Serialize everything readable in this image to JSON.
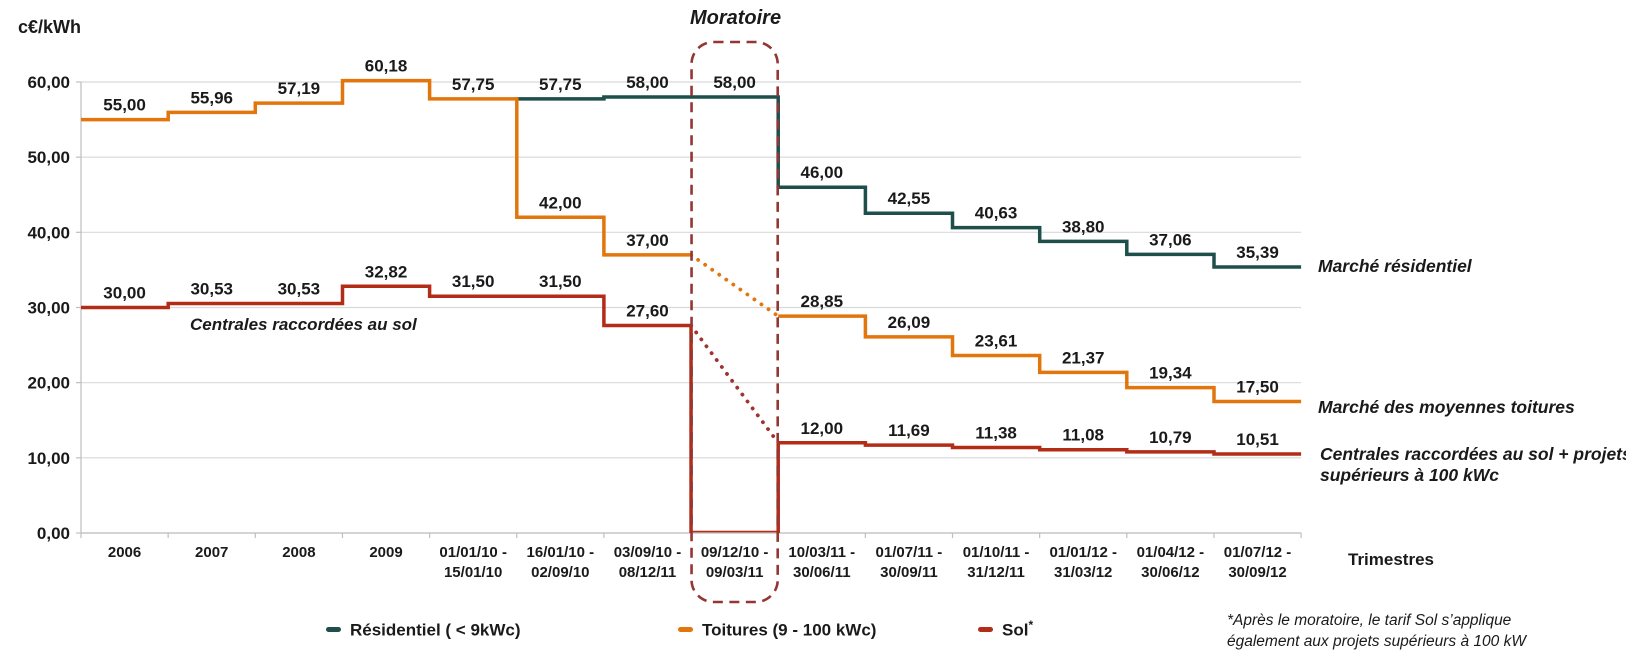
{
  "y_axis": {
    "unit": "c€/kWh"
  },
  "x_axis": {
    "title": "Trimestres"
  },
  "moratorium": {
    "title": "Moratoire",
    "column_index": 7
  },
  "annotations": {
    "sol_before": "Centrales raccordées au sol",
    "residentiel": "Marché résidentiel",
    "toitures": "Marché des moyennes toitures",
    "sol_after_line1": "Centrales raccordées au sol + projets",
    "sol_after_line2": "supérieurs à 100 kWc"
  },
  "legend": [
    {
      "label": "Résidentiel ( < 9kWc)",
      "sup": "",
      "color": "#1E4F4B"
    },
    {
      "label": "Toitures (9 - 100 kWc)",
      "sup": "",
      "color": "#E2760D"
    },
    {
      "label": "Sol",
      "sup": "*",
      "color": "#B22C17"
    }
  ],
  "footnote": {
    "line1": "*Après le moratoire, le tarif Sol s’applique",
    "line2": "également aux projets supérieurs à 100 kW"
  },
  "chart_data": {
    "type": "line",
    "step": true,
    "ylabel": "c€/kWh",
    "xlabel": "Trimestres",
    "ylim": [
      0,
      60
    ],
    "grid": true,
    "y_ticks": [
      {
        "value": 0,
        "label": "0,00"
      },
      {
        "value": 10,
        "label": "10,00"
      },
      {
        "value": 20,
        "label": "20,00"
      },
      {
        "value": 30,
        "label": "30,00"
      },
      {
        "value": 40,
        "label": "40,00"
      },
      {
        "value": 50,
        "label": "50,00"
      },
      {
        "value": 60,
        "label": "60,00"
      }
    ],
    "categories": [
      {
        "lines": [
          "2006"
        ]
      },
      {
        "lines": [
          "2007"
        ]
      },
      {
        "lines": [
          "2008"
        ]
      },
      {
        "lines": [
          "2009"
        ]
      },
      {
        "lines": [
          "01/01/10 -",
          "15/01/10"
        ]
      },
      {
        "lines": [
          "16/01/10 -",
          "02/09/10"
        ]
      },
      {
        "lines": [
          "03/09/10 -",
          "08/12/11"
        ]
      },
      {
        "lines": [
          "09/12/10 -",
          "09/03/11"
        ]
      },
      {
        "lines": [
          "10/03/11 -",
          "30/06/11"
        ]
      },
      {
        "lines": [
          "01/07/11 -",
          "30/09/11"
        ]
      },
      {
        "lines": [
          "01/10/11 -",
          "31/12/11"
        ]
      },
      {
        "lines": [
          "01/01/12 -",
          "31/03/12"
        ]
      },
      {
        "lines": [
          "01/04/12 -",
          "30/06/12"
        ]
      },
      {
        "lines": [
          "01/07/12 -",
          "30/09/12"
        ]
      }
    ],
    "series": [
      {
        "name": "Résidentiel ( < 9kWc)",
        "color": "#1E4F4B",
        "values": [
          null,
          null,
          null,
          null,
          null,
          57.75,
          58.0,
          58.0,
          46.0,
          42.55,
          40.63,
          38.8,
          37.06,
          35.39
        ],
        "labels": [
          null,
          null,
          null,
          null,
          null,
          "57,75",
          "58,00",
          "58,00",
          "46,00",
          "42,55",
          "40,63",
          "38,80",
          "37,06",
          "35,39"
        ]
      },
      {
        "name": "Toitures (9 - 100 kWc)",
        "color": "#E2760D",
        "values": [
          55.0,
          55.96,
          57.19,
          60.18,
          57.75,
          42.0,
          37.0,
          null,
          28.85,
          26.09,
          23.61,
          21.37,
          19.34,
          17.5
        ],
        "labels": [
          "55,00",
          "55,96",
          "57,19",
          "60,18",
          "57,75",
          "42,00",
          "37,00",
          null,
          "28,85",
          "26,09",
          "23,61",
          "21,37",
          "19,34",
          "17,50"
        ],
        "dotted_bridge": {
          "from_boundary": 7,
          "from_value": 37.0,
          "to_boundary": 8,
          "to_value": 28.85,
          "color": "#E2760D"
        }
      },
      {
        "name": "Sol",
        "color": "#B22C17",
        "values": [
          30.0,
          30.53,
          30.53,
          32.82,
          31.5,
          31.5,
          27.6,
          0,
          12.0,
          11.69,
          11.38,
          11.08,
          10.79,
          10.51
        ],
        "labels": [
          "30,00",
          "30,53",
          "30,53",
          "32,82",
          "31,50",
          "31,50",
          "27,60",
          null,
          "12,00",
          "11,69",
          "11,38",
          "11,08",
          "10,79",
          "10,51"
        ],
        "zero_column": 7,
        "dotted_bridge": {
          "from_boundary": 7,
          "from_value": 27.6,
          "to_boundary": 8,
          "to_value": 12.0,
          "color": "#9E3430"
        }
      }
    ],
    "colors": {
      "grid": "#D9D9D9",
      "axis": "#BFBFBF",
      "moratorium_box": "#943634",
      "label_text": "#1A1A1A"
    }
  }
}
